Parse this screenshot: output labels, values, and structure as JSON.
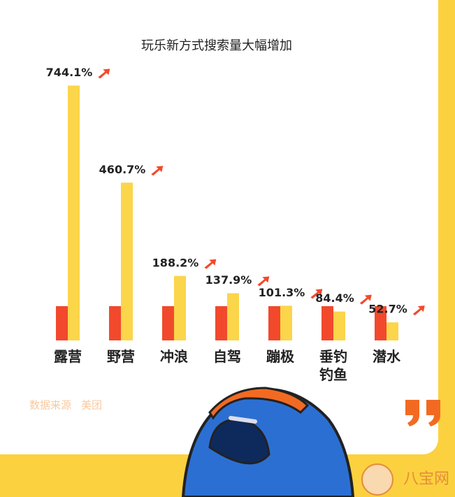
{
  "chart_data": {
    "type": "bar",
    "title": "玩乐新方式搜索量大幅增加",
    "categories": [
      "露营",
      "野营",
      "冲浪",
      "自驾",
      "蹦极",
      "垂钓钓鱼",
      "潜水"
    ],
    "series": [
      {
        "color": "#f2492c",
        "values": [
          100,
          100,
          100,
          100,
          100,
          100,
          100
        ]
      },
      {
        "color": "#fbd54a",
        "values": [
          744.1,
          460.7,
          188.2,
          137.9,
          101.3,
          84.4,
          52.7
        ],
        "value_labels": [
          "744.1%",
          "460.7%",
          "188.2%",
          "137.9%",
          "101.3%",
          "84.4%",
          "52.7%"
        ]
      }
    ],
    "ylim": [
      0,
      800
    ]
  },
  "source": {
    "label": "数据来源",
    "value": "美团"
  },
  "watermark": "八宝网"
}
